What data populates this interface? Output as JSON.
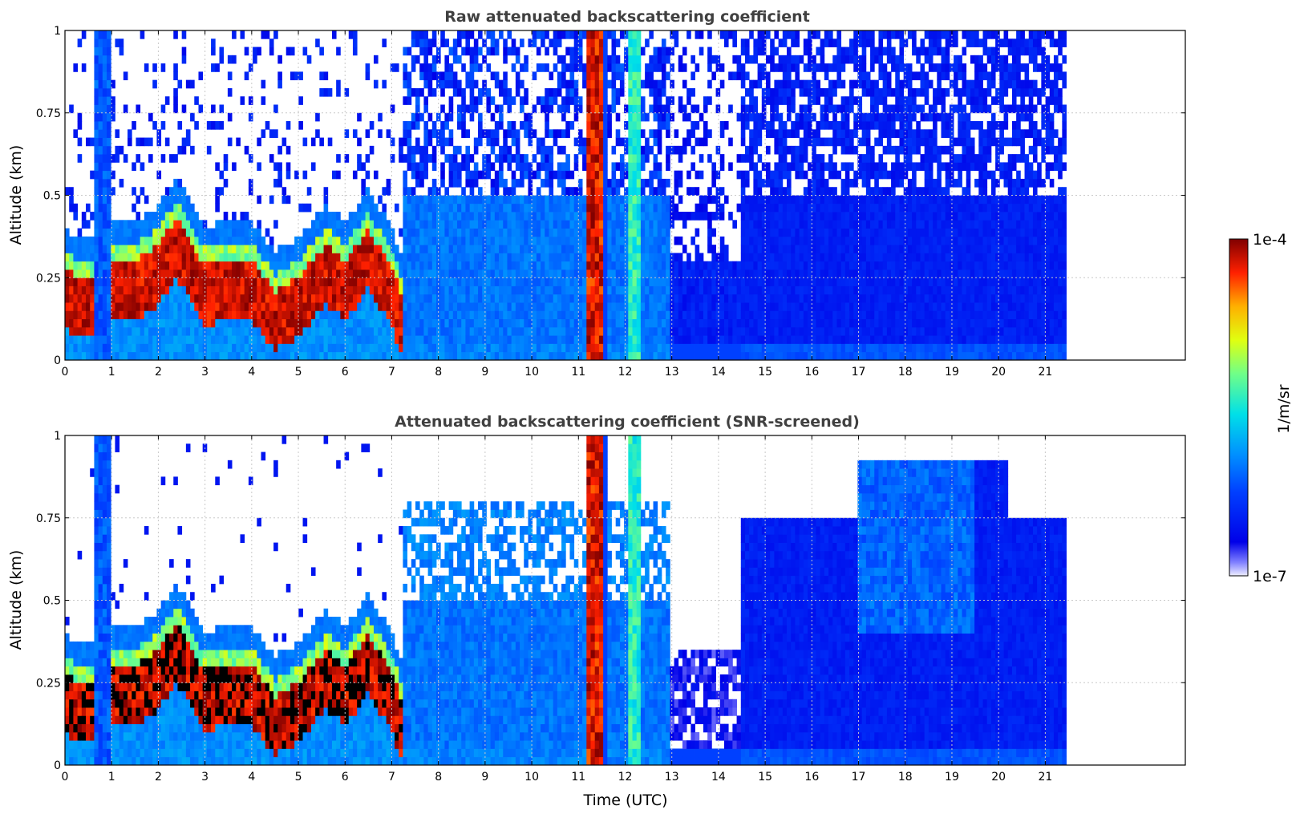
{
  "chart_data": [
    {
      "type": "heatmap",
      "title": "Raw attenuated backscattering coefficient",
      "xlabel": "",
      "ylabel": "Altitude (km)",
      "xlim": [
        0,
        24
      ],
      "ylim": [
        0,
        1
      ],
      "x_ticks": [
        0,
        1,
        2,
        3,
        4,
        5,
        6,
        7,
        8,
        9,
        10,
        11,
        12,
        13,
        14,
        15,
        16,
        17,
        18,
        19,
        20,
        21
      ],
      "y_ticks": [
        0,
        0.25,
        0.5,
        0.75,
        1
      ],
      "y_tick_labels": [
        "0",
        "0.25",
        "0.5",
        "0.75",
        "1"
      ],
      "data_end_time": 21.45,
      "grid": true,
      "screened": false
    },
    {
      "type": "heatmap",
      "title": "Attenuated backscattering coefficient (SNR-screened)",
      "xlabel": "Time (UTC)",
      "ylabel": "Altitude (km)",
      "xlim": [
        0,
        24
      ],
      "ylim": [
        0,
        1
      ],
      "x_ticks": [
        0,
        1,
        2,
        3,
        4,
        5,
        6,
        7,
        8,
        9,
        10,
        11,
        12,
        13,
        14,
        15,
        16,
        17,
        18,
        19,
        20,
        21
      ],
      "y_ticks": [
        0,
        0.25,
        0.5,
        0.75,
        1
      ],
      "y_tick_labels": [
        "0",
        "0.25",
        "0.5",
        "0.75",
        "1"
      ],
      "data_end_time": 21.45,
      "grid": true,
      "screened": true
    }
  ],
  "colorbar": {
    "label": "1/m/sr",
    "max_label": "1e-4",
    "min_label": "1e-7",
    "scale": "log",
    "range": [
      1e-07,
      0.0001
    ],
    "colormap": "jet"
  }
}
